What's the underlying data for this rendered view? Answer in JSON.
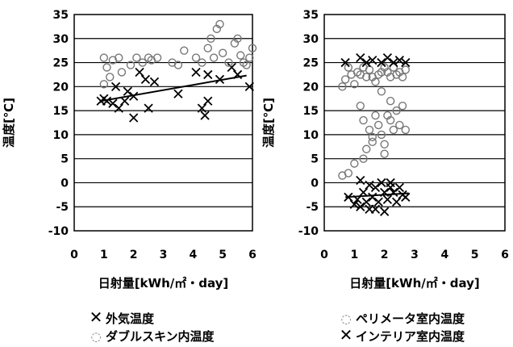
{
  "chart_data": [
    {
      "type": "scatter",
      "ylabel": "温度[℃]",
      "xlabel": "日射量[kWh/㎡・day]",
      "xlim": [
        0,
        6
      ],
      "ylim": [
        -10,
        35
      ],
      "xticks": [
        "0",
        "1",
        "2",
        "3",
        "4",
        "5",
        "6"
      ],
      "yticks": [
        "-10",
        "-5",
        "0",
        "5",
        "10",
        "15",
        "20",
        "25",
        "30",
        "35"
      ],
      "grid": "horizontal",
      "series": [
        {
          "name": "外気温度",
          "marker": "x",
          "color": "#000000",
          "points": [
            [
              0.9,
              17
            ],
            [
              1.0,
              17.5
            ],
            [
              1.1,
              17
            ],
            [
              1.3,
              16.5
            ],
            [
              1.5,
              15.5
            ],
            [
              1.7,
              17
            ],
            [
              1.8,
              19
            ],
            [
              2.0,
              18
            ],
            [
              2.0,
              13.5
            ],
            [
              2.2,
              23
            ],
            [
              2.4,
              21.5
            ],
            [
              2.5,
              15.5
            ],
            [
              2.7,
              21
            ],
            [
              3.5,
              18.5
            ],
            [
              4.1,
              23
            ],
            [
              4.3,
              15.5
            ],
            [
              4.4,
              14
            ],
            [
              4.5,
              17
            ],
            [
              4.5,
              22.5
            ],
            [
              4.9,
              21.5
            ],
            [
              5.3,
              24
            ],
            [
              5.5,
              22.5
            ],
            [
              5.9,
              20
            ],
            [
              1.4,
              20
            ]
          ],
          "trendline": [
            [
              0.9,
              17
            ],
            [
              5.8,
              22.3
            ]
          ]
        },
        {
          "name": "ダブルスキン内温度",
          "marker": "o",
          "color": "#777777",
          "points": [
            [
              1.0,
              26
            ],
            [
              1.0,
              20.5
            ],
            [
              1.1,
              24
            ],
            [
              1.2,
              22
            ],
            [
              1.3,
              25.5
            ],
            [
              1.5,
              26
            ],
            [
              1.6,
              23
            ],
            [
              1.9,
              24.5
            ],
            [
              2.1,
              26
            ],
            [
              2.3,
              25
            ],
            [
              2.5,
              26
            ],
            [
              2.6,
              25.5
            ],
            [
              2.8,
              26
            ],
            [
              3.3,
              25
            ],
            [
              3.5,
              24.5
            ],
            [
              3.7,
              27.5
            ],
            [
              4.1,
              26
            ],
            [
              4.3,
              25
            ],
            [
              4.5,
              28
            ],
            [
              4.6,
              30
            ],
            [
              4.7,
              26
            ],
            [
              4.8,
              32
            ],
            [
              4.9,
              33
            ],
            [
              5.0,
              27
            ],
            [
              5.2,
              25
            ],
            [
              5.4,
              29
            ],
            [
              5.5,
              30
            ],
            [
              5.6,
              26.5
            ],
            [
              5.7,
              25
            ],
            [
              5.8,
              24.5
            ],
            [
              5.9,
              26
            ],
            [
              6.0,
              28
            ]
          ]
        }
      ]
    },
    {
      "type": "scatter",
      "ylabel": "温度[℃]",
      "xlabel": "日射量[kWh/㎡・day]",
      "xlim": [
        0,
        6
      ],
      "ylim": [
        -10,
        35
      ],
      "xticks": [
        "0",
        "1",
        "2",
        "3",
        "4",
        "5",
        "6"
      ],
      "yticks": [
        "-10",
        "-5",
        "0",
        "5",
        "10",
        "15",
        "20",
        "25",
        "30",
        "35"
      ],
      "grid": "horizontal",
      "series": [
        {
          "name": "ペリメータ室内温度",
          "marker": "o",
          "color": "#777777",
          "points": [
            [
              0.6,
              20
            ],
            [
              0.7,
              21.5
            ],
            [
              0.8,
              24
            ],
            [
              0.9,
              22.5
            ],
            [
              1.0,
              20.5
            ],
            [
              1.1,
              23
            ],
            [
              1.2,
              22.5
            ],
            [
              1.3,
              24
            ],
            [
              1.4,
              22
            ],
            [
              1.5,
              23.5
            ],
            [
              1.6,
              22
            ],
            [
              1.7,
              21
            ],
            [
              1.8,
              22.5
            ],
            [
              1.9,
              23
            ],
            [
              2.0,
              24
            ],
            [
              2.1,
              23
            ],
            [
              2.2,
              22
            ],
            [
              2.3,
              24
            ],
            [
              2.4,
              22.5
            ],
            [
              2.5,
              23
            ],
            [
              2.6,
              22
            ],
            [
              2.7,
              23.5
            ],
            [
              1.2,
              16
            ],
            [
              1.3,
              13
            ],
            [
              1.5,
              11
            ],
            [
              1.6,
              9.5
            ],
            [
              1.7,
              14
            ],
            [
              1.8,
              12
            ],
            [
              1.9,
              10
            ],
            [
              2.0,
              8
            ],
            [
              2.1,
              14
            ],
            [
              2.2,
              13
            ],
            [
              2.3,
              11
            ],
            [
              2.4,
              15
            ],
            [
              2.5,
              12
            ],
            [
              2.6,
              16
            ],
            [
              2.7,
              11
            ],
            [
              2.0,
              6
            ],
            [
              1.4,
              7
            ],
            [
              1.0,
              4
            ],
            [
              0.8,
              2
            ],
            [
              0.6,
              1.5
            ],
            [
              1.3,
              5
            ],
            [
              1.6,
              8.5
            ],
            [
              2.2,
              17
            ],
            [
              1.9,
              19
            ]
          ]
        },
        {
          "name": "インテリア室内温度",
          "marker": "x",
          "color": "#000000",
          "points": [
            [
              0.8,
              -3
            ],
            [
              1.0,
              -4.5
            ],
            [
              1.1,
              -3.5
            ],
            [
              1.2,
              -5
            ],
            [
              1.3,
              -2
            ],
            [
              1.4,
              -4
            ],
            [
              1.5,
              -5.5
            ],
            [
              1.6,
              -3
            ],
            [
              1.7,
              -1
            ],
            [
              1.8,
              -4
            ],
            [
              1.9,
              0
            ],
            [
              2.0,
              -2
            ],
            [
              2.1,
              -3.5
            ],
            [
              2.2,
              0
            ],
            [
              2.3,
              -2
            ],
            [
              2.4,
              -4
            ],
            [
              2.5,
              -1
            ],
            [
              2.6,
              -2.5
            ],
            [
              2.7,
              -3
            ],
            [
              1.7,
              -5.5
            ],
            [
              2.0,
              -6
            ],
            [
              1.2,
              0.5
            ],
            [
              1.5,
              -0.5
            ],
            [
              2.2,
              -1
            ],
            [
              0.7,
              25
            ],
            [
              1.2,
              26
            ],
            [
              1.4,
              25
            ],
            [
              1.6,
              25.5
            ],
            [
              1.9,
              25
            ],
            [
              2.1,
              26
            ],
            [
              2.3,
              25
            ],
            [
              2.5,
              25.5
            ],
            [
              2.7,
              25
            ]
          ],
          "trendline": [
            [
              0.7,
              -3
            ],
            [
              2.8,
              -2.2
            ]
          ]
        }
      ]
    }
  ],
  "legend": {
    "left": [
      {
        "symbol": "✕",
        "label": "外気温度"
      },
      {
        "symbol": "◌",
        "label": "ダブルスキン内温度"
      }
    ],
    "right": [
      {
        "symbol": "◌",
        "label": "ペリメータ室内温度"
      },
      {
        "symbol": "✕",
        "label": "インテリア室内温度"
      }
    ]
  }
}
